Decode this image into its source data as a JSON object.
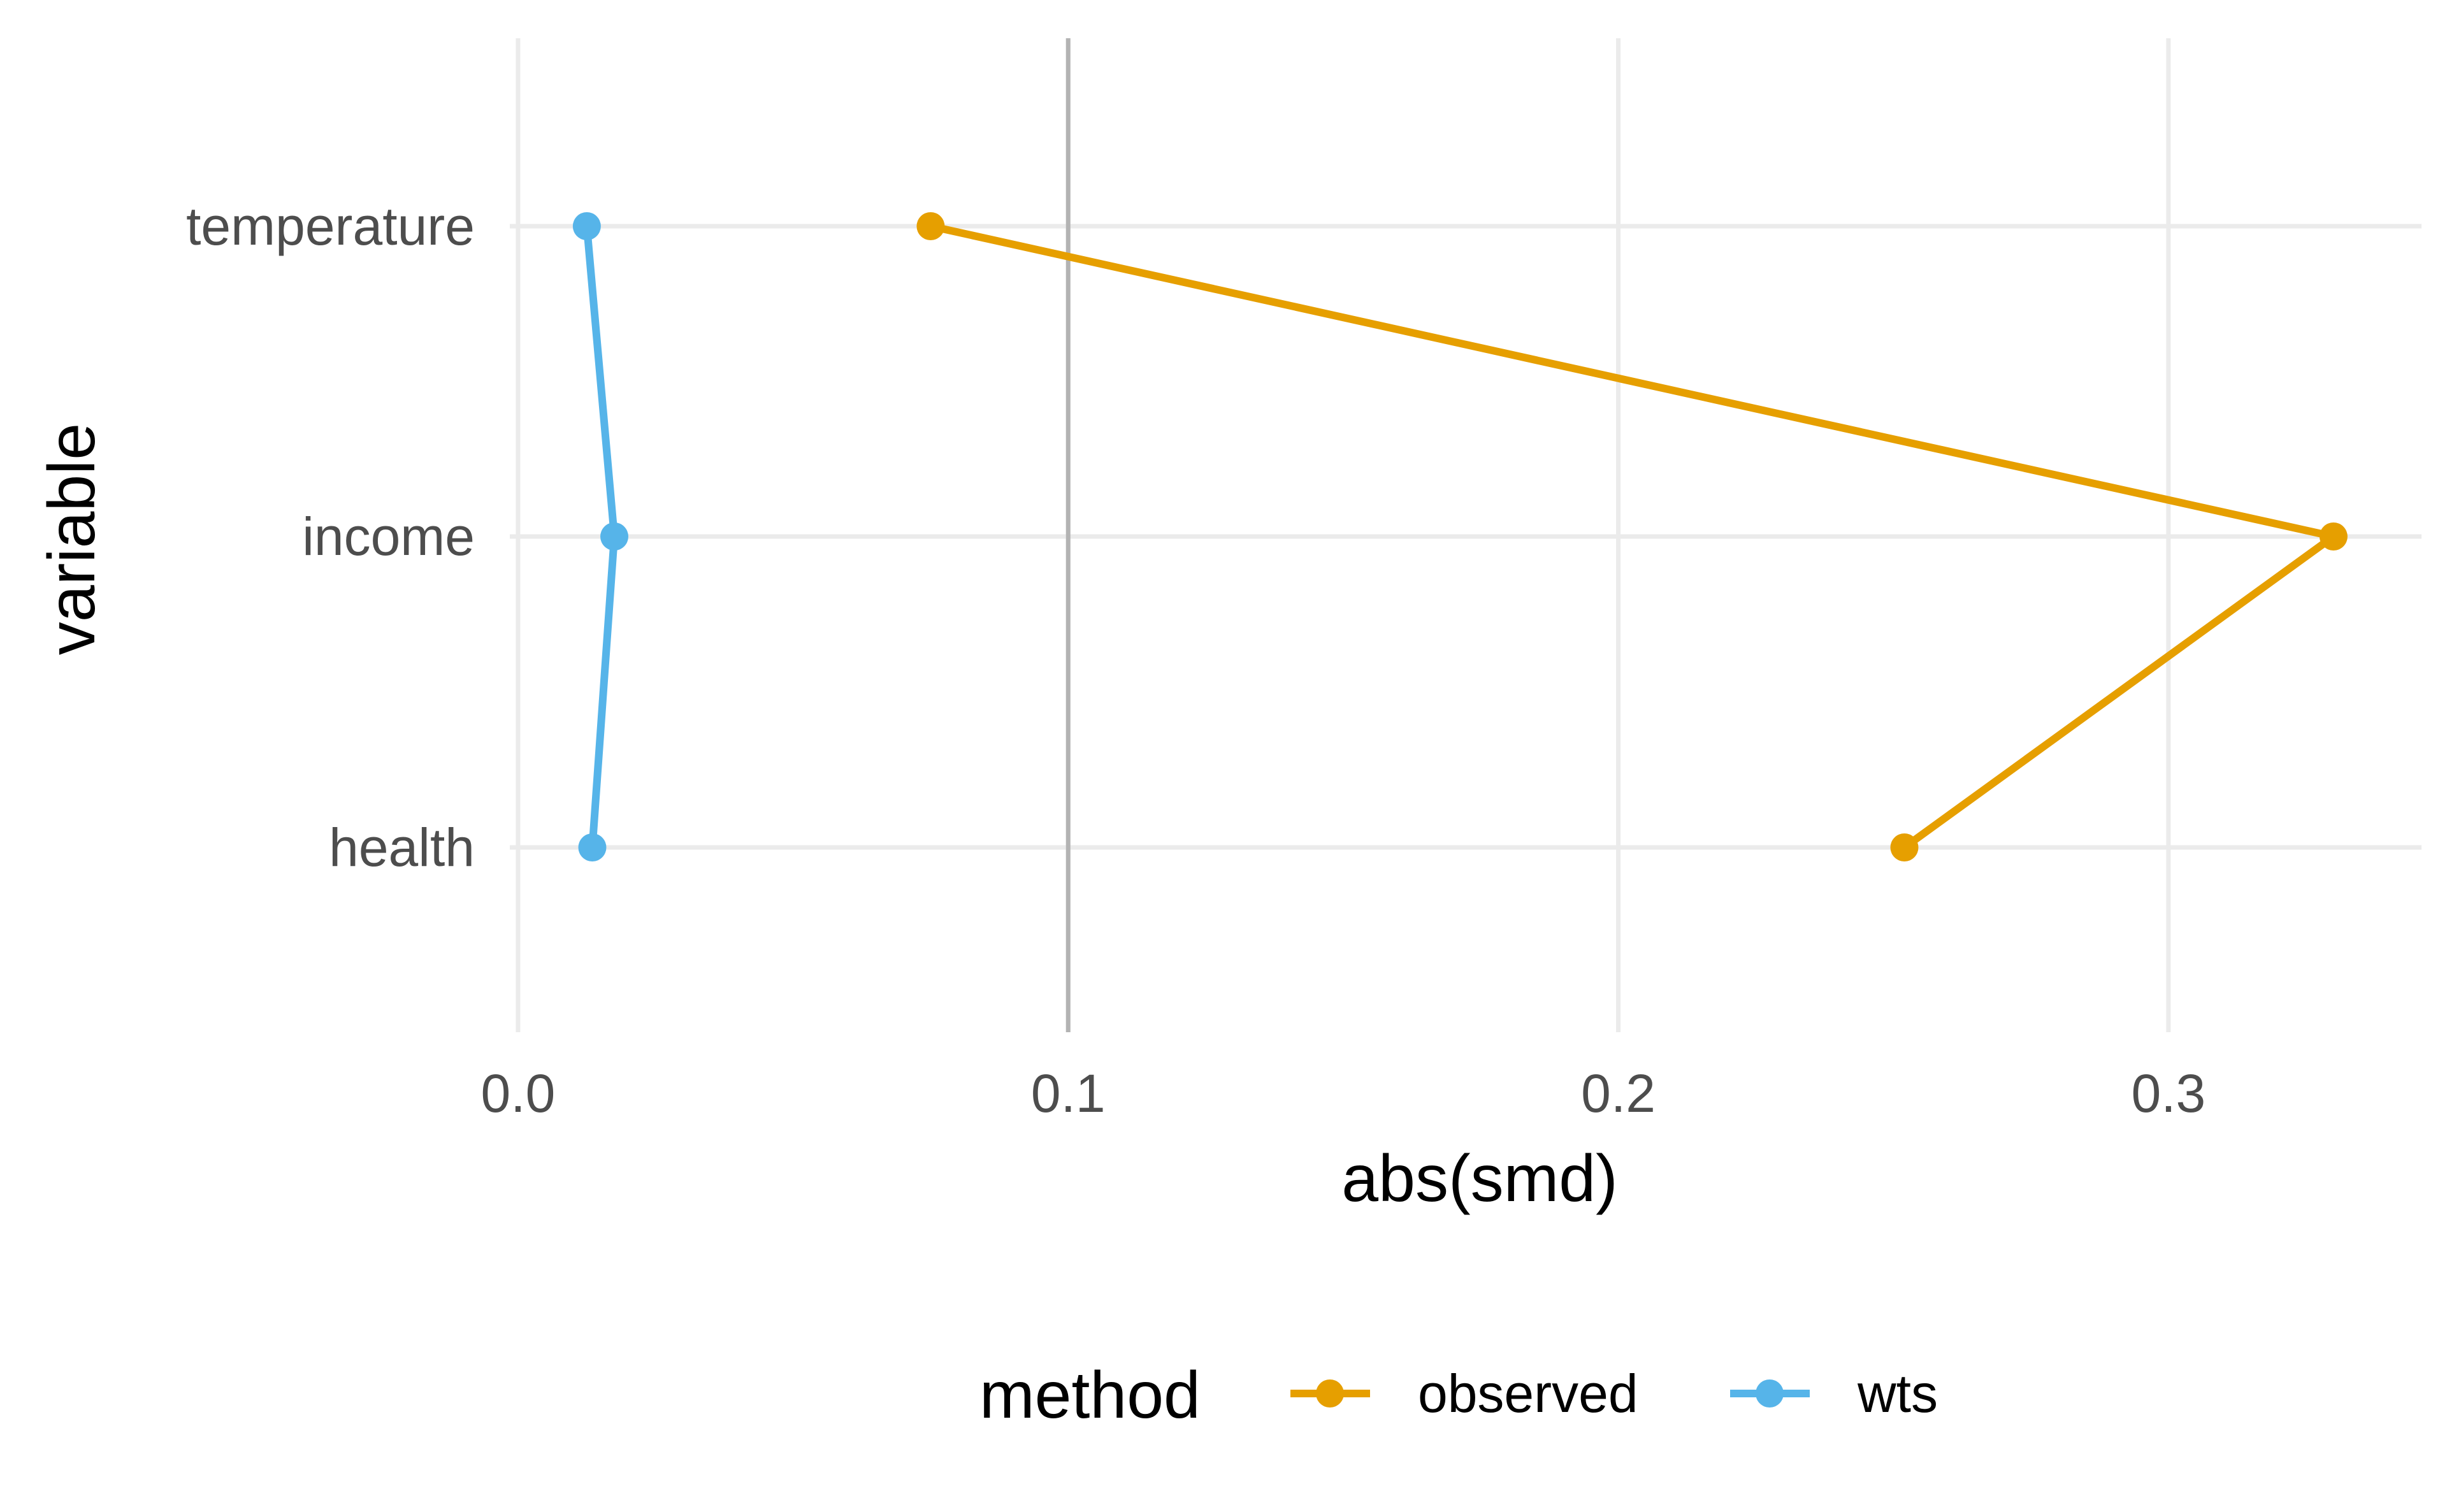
{
  "chart_data": {
    "type": "line",
    "orientation": "horizontal-values",
    "xlabel": "abs(smd)",
    "ylabel": "variable",
    "xlim": [
      -0.0015,
      0.346
    ],
    "x_ticks": [
      0.0,
      0.1,
      0.2,
      0.3
    ],
    "x_tick_labels": [
      "0.0",
      "0.1",
      "0.2",
      "0.3"
    ],
    "categories": [
      "temperature",
      "income",
      "health"
    ],
    "reference_line": {
      "x": 0.1,
      "color": "#b3b3b3"
    },
    "grid": true,
    "legend": {
      "title": "method",
      "position": "bottom"
    },
    "series": [
      {
        "name": "observed",
        "color": "#E69F00",
        "values": [
          0.075,
          0.33,
          0.252
        ]
      },
      {
        "name": "wts",
        "color": "#56B4E9",
        "values": [
          0.0125,
          0.0175,
          0.0135
        ]
      }
    ]
  }
}
